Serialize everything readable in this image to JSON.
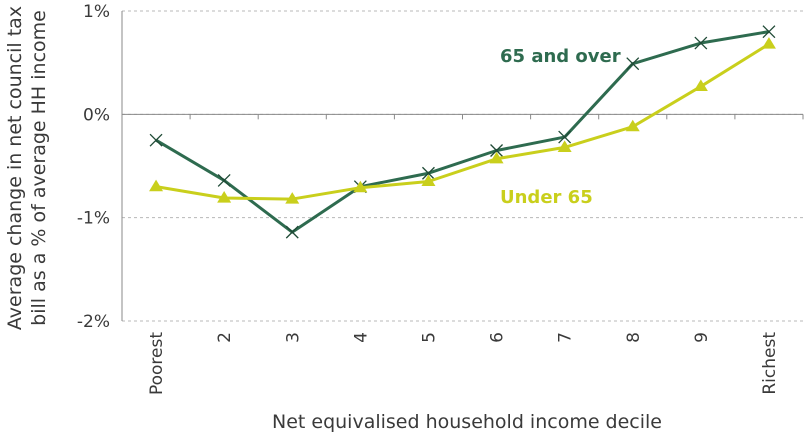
{
  "chart_data": {
    "type": "line",
    "title": "",
    "xlabel": "Net equivalised household income decile",
    "ylabel": [
      "Average change in net council tax",
      "bill as a % of average HH income"
    ],
    "categories": [
      "Poorest",
      "2",
      "3",
      "4",
      "5",
      "6",
      "7",
      "8",
      "9",
      "Richest"
    ],
    "ylim": [
      -2,
      1
    ],
    "yticks": [
      1,
      0,
      -1,
      -2
    ],
    "ytick_labels": [
      "1%",
      "0%",
      "-1%",
      "-2%"
    ],
    "grid": true,
    "series": [
      {
        "name": "65 and over",
        "marker": "x",
        "color": "#2e6b4f",
        "values": [
          -0.25,
          -0.64,
          -1.14,
          -0.7,
          -0.57,
          -0.35,
          -0.22,
          0.49,
          0.69,
          0.8
        ]
      },
      {
        "name": "Under 65",
        "marker": "triangle",
        "color": "#c9cf1c",
        "values": [
          -0.7,
          -0.81,
          -0.82,
          -0.71,
          -0.65,
          -0.43,
          -0.32,
          -0.12,
          0.27,
          0.68
        ]
      }
    ]
  }
}
